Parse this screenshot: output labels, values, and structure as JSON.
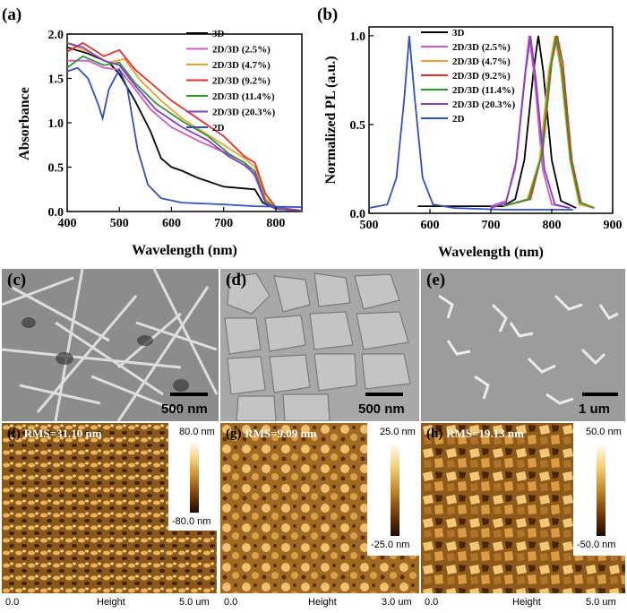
{
  "chart_data": [
    {
      "panel": "(a)",
      "type": "line",
      "xlabel": "Wavelength (nm)",
      "ylabel": "Absorbance",
      "xlim": [
        400,
        850
      ],
      "ylim": [
        0.0,
        2.0
      ],
      "xticks": [
        400,
        500,
        600,
        700,
        800
      ],
      "yticks": [
        "0.0",
        "0.5",
        "1.0",
        "1.5",
        "2.0"
      ],
      "series": [
        {
          "name": "3D",
          "color": "#000000",
          "points": [
            [
              400,
              1.85
            ],
            [
              440,
              1.78
            ],
            [
              480,
              1.68
            ],
            [
              500,
              1.55
            ],
            [
              530,
              1.25
            ],
            [
              560,
              0.9
            ],
            [
              580,
              0.6
            ],
            [
              600,
              0.5
            ],
            [
              620,
              0.46
            ],
            [
              650,
              0.38
            ],
            [
              680,
              0.32
            ],
            [
              700,
              0.28
            ],
            [
              740,
              0.26
            ],
            [
              760,
              0.25
            ],
            [
              775,
              0.1
            ],
            [
              800,
              0.03
            ],
            [
              850,
              0.01
            ]
          ]
        },
        {
          "name": "2D/3D (2.5%)",
          "color": "#d058c8",
          "points": [
            [
              400,
              1.7
            ],
            [
              440,
              1.7
            ],
            [
              470,
              1.62
            ],
            [
              500,
              1.6
            ],
            [
              530,
              1.38
            ],
            [
              560,
              1.15
            ],
            [
              600,
              0.95
            ],
            [
              650,
              0.8
            ],
            [
              700,
              0.67
            ],
            [
              740,
              0.55
            ],
            [
              760,
              0.4
            ],
            [
              780,
              0.1
            ],
            [
              800,
              0.03
            ],
            [
              850,
              0.01
            ]
          ]
        },
        {
          "name": "2D/3D (4.7%)",
          "color": "#f0a030",
          "points": [
            [
              400,
              1.9
            ],
            [
              440,
              1.8
            ],
            [
              480,
              1.68
            ],
            [
              510,
              1.72
            ],
            [
              540,
              1.48
            ],
            [
              580,
              1.25
            ],
            [
              620,
              1.05
            ],
            [
              660,
              0.9
            ],
            [
              700,
              0.75
            ],
            [
              740,
              0.6
            ],
            [
              760,
              0.5
            ],
            [
              780,
              0.15
            ],
            [
              800,
              0.04
            ],
            [
              850,
              0.01
            ]
          ]
        },
        {
          "name": "2D/3D (9.2%)",
          "color": "#e03030",
          "points": [
            [
              400,
              1.8
            ],
            [
              430,
              1.9
            ],
            [
              470,
              1.75
            ],
            [
              500,
              1.82
            ],
            [
              530,
              1.6
            ],
            [
              560,
              1.45
            ],
            [
              600,
              1.25
            ],
            [
              650,
              1.05
            ],
            [
              700,
              0.85
            ],
            [
              740,
              0.62
            ],
            [
              760,
              0.55
            ],
            [
              780,
              0.2
            ],
            [
              800,
              0.05
            ],
            [
              850,
              0.01
            ]
          ]
        },
        {
          "name": "2D/3D (11.4%)",
          "color": "#2e9a2e",
          "points": [
            [
              400,
              1.62
            ],
            [
              430,
              1.75
            ],
            [
              470,
              1.65
            ],
            [
              500,
              1.68
            ],
            [
              530,
              1.45
            ],
            [
              570,
              1.22
            ],
            [
              620,
              1.02
            ],
            [
              670,
              0.85
            ],
            [
              710,
              0.65
            ],
            [
              740,
              0.55
            ],
            [
              760,
              0.45
            ],
            [
              780,
              0.12
            ],
            [
              800,
              0.04
            ],
            [
              850,
              0.01
            ]
          ]
        },
        {
          "name": "2D/3D (20.3%)",
          "color": "#8040c0",
          "points": [
            [
              400,
              1.9
            ],
            [
              430,
              1.85
            ],
            [
              470,
              1.7
            ],
            [
              500,
              1.65
            ],
            [
              530,
              1.42
            ],
            [
              570,
              1.15
            ],
            [
              620,
              0.95
            ],
            [
              670,
              0.8
            ],
            [
              710,
              0.62
            ],
            [
              740,
              0.52
            ],
            [
              760,
              0.42
            ],
            [
              780,
              0.1
            ],
            [
              800,
              0.03
            ],
            [
              850,
              0.01
            ]
          ]
        },
        {
          "name": "2D",
          "color": "#3050c0",
          "points": [
            [
              400,
              1.58
            ],
            [
              420,
              1.62
            ],
            [
              440,
              1.5
            ],
            [
              460,
              1.2
            ],
            [
              468,
              1.05
            ],
            [
              480,
              1.38
            ],
            [
              500,
              1.6
            ],
            [
              515,
              1.4
            ],
            [
              535,
              0.7
            ],
            [
              555,
              0.3
            ],
            [
              580,
              0.15
            ],
            [
              620,
              0.1
            ],
            [
              700,
              0.08
            ],
            [
              760,
              0.06
            ],
            [
              850,
              0.05
            ]
          ]
        }
      ]
    },
    {
      "panel": "(b)",
      "type": "line",
      "xlabel": "Wavelength (nm)",
      "ylabel": "Normalized PL (a.u.)",
      "xlim": [
        500,
        900
      ],
      "ylim": [
        0.0,
        1.05
      ],
      "xticks": [
        500,
        600,
        700,
        800,
        900
      ],
      "yticks": [
        "0.0",
        "0.5",
        "1.0"
      ],
      "series": [
        {
          "name": "3D",
          "color": "#000000",
          "points": [
            [
              580,
              0.04
            ],
            [
              720,
              0.04
            ],
            [
              740,
              0.08
            ],
            [
              755,
              0.3
            ],
            [
              770,
              0.8
            ],
            [
              778,
              1.0
            ],
            [
              786,
              0.8
            ],
            [
              800,
              0.3
            ],
            [
              815,
              0.07
            ],
            [
              840,
              0.03
            ]
          ]
        },
        {
          "name": "2D/3D (2.5%)",
          "color": "#d058c8",
          "points": [
            [
              700,
              0.04
            ],
            [
              725,
              0.07
            ],
            [
              740,
              0.25
            ],
            [
              755,
              0.75
            ],
            [
              763,
              1.0
            ],
            [
              772,
              0.75
            ],
            [
              785,
              0.25
            ],
            [
              800,
              0.05
            ],
            [
              830,
              0.03
            ]
          ]
        },
        {
          "name": "2D/3D (4.7%)",
          "color": "#f0a030",
          "points": [
            [
              720,
              0.04
            ],
            [
              760,
              0.08
            ],
            [
              780,
              0.3
            ],
            [
              795,
              0.8
            ],
            [
              805,
              1.0
            ],
            [
              815,
              0.8
            ],
            [
              830,
              0.3
            ],
            [
              845,
              0.05
            ],
            [
              870,
              0.03
            ]
          ]
        },
        {
          "name": "2D/3D (9.2%)",
          "color": "#e03030",
          "points": [
            [
              720,
              0.04
            ],
            [
              765,
              0.08
            ],
            [
              785,
              0.35
            ],
            [
              800,
              0.85
            ],
            [
              809,
              1.0
            ],
            [
              818,
              0.85
            ],
            [
              833,
              0.3
            ],
            [
              848,
              0.06
            ],
            [
              870,
              0.03
            ]
          ]
        },
        {
          "name": "2D/3D (11.4%)",
          "color": "#2e9a2e",
          "points": [
            [
              720,
              0.04
            ],
            [
              762,
              0.08
            ],
            [
              783,
              0.32
            ],
            [
              798,
              0.82
            ],
            [
              807,
              1.0
            ],
            [
              816,
              0.82
            ],
            [
              831,
              0.3
            ],
            [
              846,
              0.06
            ],
            [
              870,
              0.03
            ]
          ]
        },
        {
          "name": "2D/3D (20.3%)",
          "color": "#8040c0",
          "points": [
            [
              700,
              0.03
            ],
            [
              725,
              0.06
            ],
            [
              742,
              0.3
            ],
            [
              757,
              0.8
            ],
            [
              765,
              1.0
            ],
            [
              774,
              0.75
            ],
            [
              788,
              0.25
            ],
            [
              805,
              0.05
            ],
            [
              830,
              0.03
            ]
          ]
        },
        {
          "name": "2D",
          "color": "#3050c0",
          "points": [
            [
              500,
              0.03
            ],
            [
              530,
              0.05
            ],
            [
              545,
              0.2
            ],
            [
              558,
              0.65
            ],
            [
              566,
              1.0
            ],
            [
              575,
              0.65
            ],
            [
              588,
              0.2
            ],
            [
              605,
              0.05
            ],
            [
              640,
              0.03
            ],
            [
              720,
              0.02
            ],
            [
              835,
              0.02
            ]
          ]
        }
      ]
    }
  ],
  "sem": [
    {
      "letter": "(c)",
      "scale": "500 nm"
    },
    {
      "letter": "(d)",
      "scale": "500 nm"
    },
    {
      "letter": "(e)",
      "scale": "1 um"
    }
  ],
  "afm": [
    {
      "letter": "(f)",
      "rms": "RMS=31.10 nm",
      "cb_top": "80.0 nm",
      "cb_bottom": "-80.0 nm",
      "axis_left": "0.0",
      "axis_mid": "Height",
      "axis_right": "5.0 um"
    },
    {
      "letter": "(g)",
      "rms": "RMS=9.09 nm",
      "cb_top": "25.0 nm",
      "cb_bottom": "-25.0 nm",
      "axis_left": "0.0",
      "axis_mid": "Height",
      "axis_right": "3.0 um"
    },
    {
      "letter": "(h)",
      "rms": "RMS=19.13 nm",
      "cb_top": "50.0 nm",
      "cb_bottom": "-50.0 nm",
      "axis_left": "0.0",
      "axis_mid": "Height",
      "axis_right": "5.0 um"
    }
  ]
}
